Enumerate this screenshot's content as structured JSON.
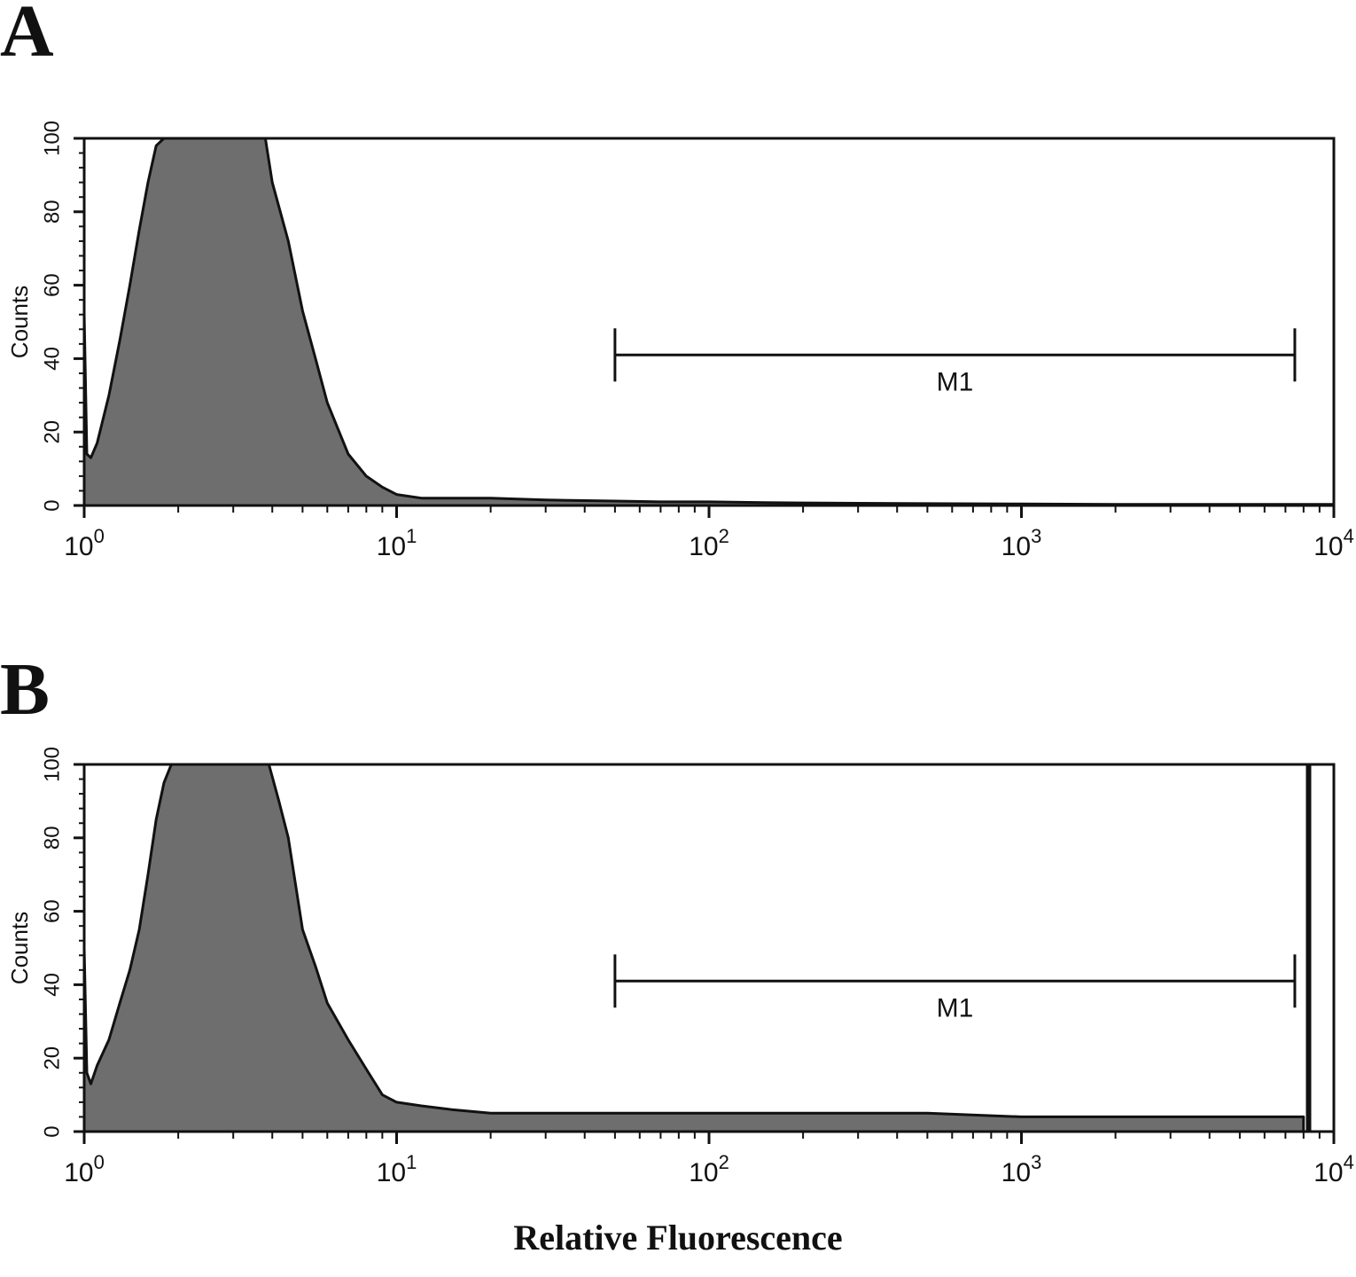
{
  "figure": {
    "panel_a_label": "A",
    "panel_b_label": "B",
    "xlabel": "Relative Fluorescence"
  },
  "colors": {
    "ink": "#111111",
    "fill": "#6e6e6e"
  },
  "chart_data": [
    {
      "type": "area",
      "panel": "A",
      "xscale": "log",
      "xlim": [
        1,
        10000
      ],
      "ylim": [
        0,
        100
      ],
      "ylabel": "Counts",
      "xticks": [
        {
          "base": "10",
          "exp": "0"
        },
        {
          "base": "10",
          "exp": "1"
        },
        {
          "base": "10",
          "exp": "2"
        },
        {
          "base": "10",
          "exp": "3"
        },
        {
          "base": "10",
          "exp": "4"
        }
      ],
      "yticks": [
        "0",
        "20",
        "40",
        "60",
        "80",
        "100"
      ],
      "marker": {
        "label": "M1",
        "x_start": 50,
        "x_end": 7500,
        "y": 41
      },
      "end_spike": null,
      "series": [
        {
          "x": [
            1.0,
            1.02,
            1.05,
            1.1,
            1.2,
            1.3,
            1.4,
            1.5,
            1.6,
            1.7,
            1.8,
            2.0,
            2.5,
            3.0,
            3.5,
            3.8,
            4.0,
            4.5,
            5.0,
            5.5,
            6.0,
            7.0,
            8.0,
            9.0,
            10,
            12,
            15,
            20,
            30,
            50,
            70,
            100,
            150,
            200,
            300,
            500,
            1000,
            2000,
            5000,
            10000
          ],
          "y": [
            52,
            14,
            13,
            17,
            30,
            45,
            60,
            75,
            88,
            98,
            100,
            100,
            100,
            100,
            100,
            100,
            88,
            72,
            53,
            40,
            28,
            14,
            8,
            5,
            3,
            2,
            2,
            2,
            1.5,
            1.2,
            1,
            1,
            0.8,
            0.7,
            0.6,
            0.5,
            0.4,
            0.3,
            0.3,
            0.3
          ]
        }
      ]
    },
    {
      "type": "area",
      "panel": "B",
      "xscale": "log",
      "xlim": [
        1,
        10000
      ],
      "ylim": [
        0,
        100
      ],
      "ylabel": "Counts",
      "xticks": [
        {
          "base": "10",
          "exp": "0"
        },
        {
          "base": "10",
          "exp": "1"
        },
        {
          "base": "10",
          "exp": "2"
        },
        {
          "base": "10",
          "exp": "3"
        },
        {
          "base": "10",
          "exp": "4"
        }
      ],
      "yticks": [
        "0",
        "20",
        "40",
        "60",
        "80",
        "100"
      ],
      "marker": {
        "label": "M1",
        "x_start": 50,
        "x_end": 7500,
        "y": 41
      },
      "end_spike": {
        "x": 8300,
        "y": 100
      },
      "series": [
        {
          "x": [
            1.0,
            1.02,
            1.05,
            1.1,
            1.2,
            1.3,
            1.4,
            1.5,
            1.6,
            1.7,
            1.8,
            1.9,
            2.0,
            2.5,
            3.0,
            3.5,
            3.9,
            4.2,
            4.5,
            5.0,
            5.5,
            6.0,
            7.0,
            8.0,
            9.0,
            10,
            12,
            15,
            20,
            30,
            50,
            100,
            200,
            500,
            1000,
            2000,
            5000,
            7800,
            8000
          ],
          "y": [
            50,
            16,
            13,
            18,
            25,
            35,
            44,
            55,
            70,
            85,
            95,
            100,
            100,
            100,
            100,
            100,
            100,
            90,
            80,
            55,
            45,
            35,
            25,
            17,
            10,
            8,
            7,
            6,
            5,
            5,
            5,
            5,
            5,
            5,
            4,
            4,
            4,
            4,
            4
          ]
        }
      ]
    }
  ]
}
